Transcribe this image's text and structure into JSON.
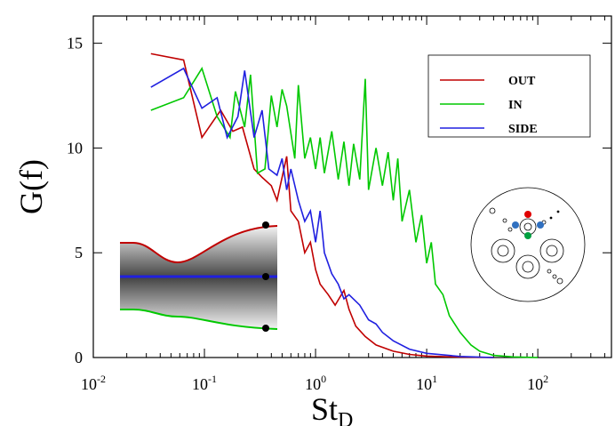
{
  "chart_data": {
    "type": "line",
    "x_label": "St",
    "x_label_subscript": "D",
    "y_label": "G(f)",
    "xscale": "log",
    "legend": "upper right",
    "xlim": [
      0.01,
      460
    ],
    "ylim": [
      0,
      16.3
    ],
    "xticks": [
      {
        "value": 0.01,
        "label": "10-2"
      },
      {
        "value": 0.1,
        "label": "10-1"
      },
      {
        "value": 1,
        "label": "100"
      },
      {
        "value": 10,
        "label": "101"
      },
      {
        "value": 100,
        "label": "102"
      }
    ],
    "yticks": [
      0,
      5,
      10,
      15
    ],
    "series": [
      {
        "name": "OUT",
        "color": "#c00000",
        "x": [
          0.033,
          0.065,
          0.095,
          0.14,
          0.18,
          0.22,
          0.28,
          0.33,
          0.4,
          0.45,
          0.5,
          0.55,
          0.6,
          0.7,
          0.8,
          0.9,
          1.0,
          1.1,
          1.3,
          1.5,
          1.8,
          2.0,
          2.3,
          2.8,
          3.5,
          5,
          7,
          10,
          20,
          40
        ],
        "values": [
          14.5,
          14.2,
          10.5,
          11.8,
          10.8,
          11.0,
          9.0,
          8.6,
          8.2,
          7.5,
          8.6,
          9.6,
          7.0,
          6.5,
          5.0,
          5.5,
          4.2,
          3.5,
          3.0,
          2.5,
          3.2,
          2.3,
          1.5,
          1.0,
          0.6,
          0.3,
          0.15,
          0.07,
          0.02,
          0.0
        ]
      },
      {
        "name": "IN",
        "color": "#00c800",
        "x": [
          0.033,
          0.065,
          0.095,
          0.13,
          0.17,
          0.19,
          0.23,
          0.26,
          0.3,
          0.35,
          0.4,
          0.45,
          0.5,
          0.55,
          0.65,
          0.7,
          0.8,
          0.9,
          1.0,
          1.1,
          1.2,
          1.4,
          1.6,
          1.8,
          2.0,
          2.2,
          2.5,
          2.8,
          3.0,
          3.5,
          4,
          4.5,
          5,
          5.5,
          6,
          7,
          8,
          9,
          10,
          11,
          12,
          14,
          16,
          20,
          25,
          30,
          40,
          60,
          100
        ],
        "values": [
          11.8,
          12.4,
          13.8,
          11.5,
          10.5,
          12.7,
          11.0,
          13.5,
          8.8,
          9.0,
          12.5,
          11.0,
          12.8,
          12.0,
          9.5,
          13.0,
          9.5,
          10.5,
          9.0,
          10.5,
          8.8,
          10.8,
          8.5,
          10.3,
          8.2,
          10.2,
          8.5,
          13.3,
          8.0,
          10.0,
          8.2,
          9.8,
          7.5,
          9.5,
          6.5,
          8.0,
          5.5,
          6.8,
          4.5,
          5.5,
          3.5,
          3.0,
          2.0,
          1.2,
          0.6,
          0.3,
          0.1,
          0.03,
          0.0
        ]
      },
      {
        "name": "SIDE",
        "color": "#2020e0",
        "x": [
          0.033,
          0.065,
          0.095,
          0.13,
          0.16,
          0.2,
          0.23,
          0.28,
          0.33,
          0.38,
          0.45,
          0.5,
          0.55,
          0.6,
          0.7,
          0.8,
          0.9,
          1.0,
          1.1,
          1.2,
          1.4,
          1.6,
          1.8,
          2.0,
          2.5,
          3.0,
          3.5,
          4,
          5,
          7,
          10,
          20,
          40
        ],
        "values": [
          12.9,
          13.8,
          11.9,
          12.4,
          10.5,
          11.5,
          13.7,
          10.5,
          11.8,
          9.0,
          8.7,
          9.5,
          8.0,
          9.0,
          7.5,
          6.5,
          7.0,
          5.5,
          7.0,
          5.0,
          4.0,
          3.5,
          2.8,
          3.0,
          2.5,
          1.8,
          1.6,
          1.2,
          0.8,
          0.4,
          0.2,
          0.05,
          0.0
        ]
      }
    ]
  }
}
